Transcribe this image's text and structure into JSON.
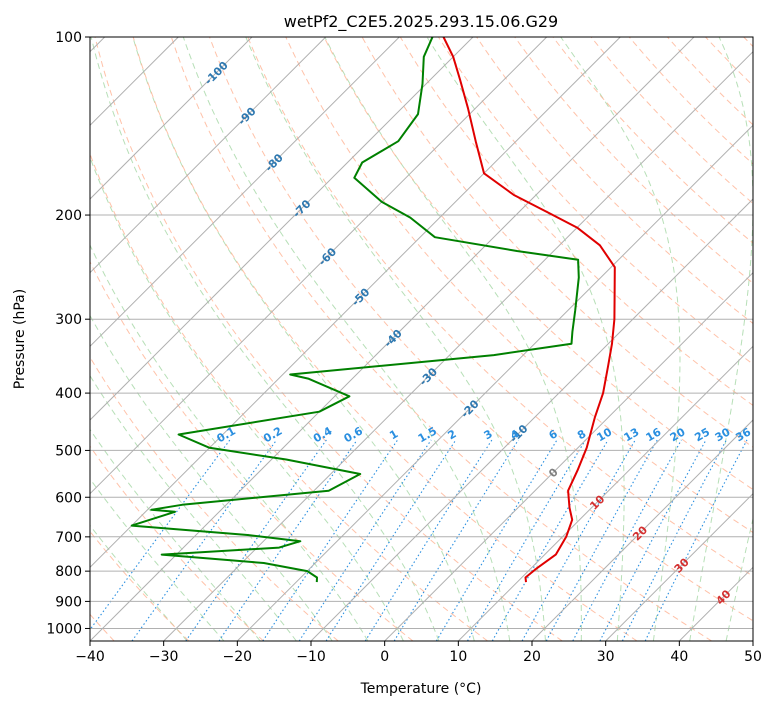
{
  "chart_data": {
    "type": "skew-t",
    "title": "wetPf2_C2E5.2025.293.15.06.G29",
    "xlabel": "Temperature (°C)",
    "ylabel": "Pressure (hPa)",
    "xlim": [
      -40,
      50
    ],
    "ylim": [
      1050,
      100
    ],
    "y_scale": "log",
    "grid": true,
    "x_ticks": [
      -40,
      -30,
      -20,
      -10,
      0,
      10,
      20,
      30,
      40,
      50
    ],
    "y_ticks": [
      100,
      200,
      300,
      400,
      500,
      600,
      700,
      800,
      900,
      1000
    ],
    "isotherm_labels": [
      {
        "value": -100,
        "p": 115
      },
      {
        "value": -90,
        "p": 136
      },
      {
        "value": -80,
        "p": 163
      },
      {
        "value": -70,
        "p": 195
      },
      {
        "value": -60,
        "p": 235
      },
      {
        "value": -50,
        "p": 275
      },
      {
        "value": -40,
        "p": 323
      },
      {
        "value": -30,
        "p": 375
      },
      {
        "value": -20,
        "p": 425
      },
      {
        "value": -10,
        "p": 468
      },
      {
        "value": 0,
        "p": 545
      },
      {
        "value": 10,
        "p": 612
      },
      {
        "value": 20,
        "p": 690
      },
      {
        "value": 30,
        "p": 782
      },
      {
        "value": 40,
        "p": 885
      }
    ],
    "mixing_ratio_labels": [
      "0.1",
      "0.2",
      "0.4",
      "0.6",
      "1",
      "1.5",
      "2",
      "3",
      "4",
      "6",
      "8",
      "10",
      "13",
      "16",
      "20",
      "25",
      "30",
      "36"
    ],
    "series": [
      {
        "color": "#e00000",
        "points": [
          [
            11.2,
            835
          ],
          [
            10.5,
            820
          ],
          [
            10.8,
            790
          ],
          [
            11.5,
            750
          ],
          [
            10.5,
            700
          ],
          [
            9.0,
            655
          ],
          [
            7.0,
            625
          ],
          [
            4.5,
            585
          ],
          [
            3.0,
            540
          ],
          [
            1.2,
            495
          ],
          [
            -1.8,
            440
          ],
          [
            -4.0,
            400
          ],
          [
            -7.0,
            360
          ],
          [
            -9.5,
            330
          ],
          [
            -12.5,
            300
          ],
          [
            -15.5,
            275
          ],
          [
            -19.5,
            245
          ],
          [
            -24.5,
            225
          ],
          [
            -30.0,
            210
          ],
          [
            -36.0,
            198
          ],
          [
            -43.0,
            185
          ],
          [
            -50.0,
            170
          ],
          [
            -55.5,
            150
          ],
          [
            -61.0,
            132
          ],
          [
            -66.0,
            118
          ],
          [
            -70.0,
            108
          ],
          [
            -74.0,
            100
          ]
        ]
      },
      {
        "color": "#008000",
        "points": [
          [
            -17.2,
            835
          ],
          [
            -17.8,
            820
          ],
          [
            -20.0,
            800
          ],
          [
            -27.0,
            775
          ],
          [
            -42.0,
            750
          ],
          [
            -27.0,
            730
          ],
          [
            -25.0,
            712
          ],
          [
            -33.0,
            695
          ],
          [
            -50.0,
            670
          ],
          [
            -46.0,
            635
          ],
          [
            -49.5,
            630
          ],
          [
            -46.0,
            618
          ],
          [
            -28.0,
            585
          ],
          [
            -26.0,
            548
          ],
          [
            -38.0,
            518
          ],
          [
            -50.0,
            495
          ],
          [
            -56.0,
            470
          ],
          [
            -40.0,
            430
          ],
          [
            -38.0,
            405
          ],
          [
            -46.0,
            378
          ],
          [
            -49.0,
            372
          ],
          [
            -24.0,
            345
          ],
          [
            -15.0,
            330
          ],
          [
            -16.5,
            315
          ],
          [
            -19.0,
            290
          ],
          [
            -23.0,
            255
          ],
          [
            -25.5,
            238
          ],
          [
            -35.0,
            230
          ],
          [
            -48.0,
            218
          ],
          [
            -54.0,
            202
          ],
          [
            -60.0,
            190
          ],
          [
            -67.0,
            173
          ],
          [
            -68.0,
            163
          ],
          [
            -66.0,
            150
          ],
          [
            -67.0,
            135
          ],
          [
            -70.5,
            120
          ],
          [
            -74.0,
            108
          ],
          [
            -75.5,
            100
          ]
        ]
      }
    ]
  }
}
